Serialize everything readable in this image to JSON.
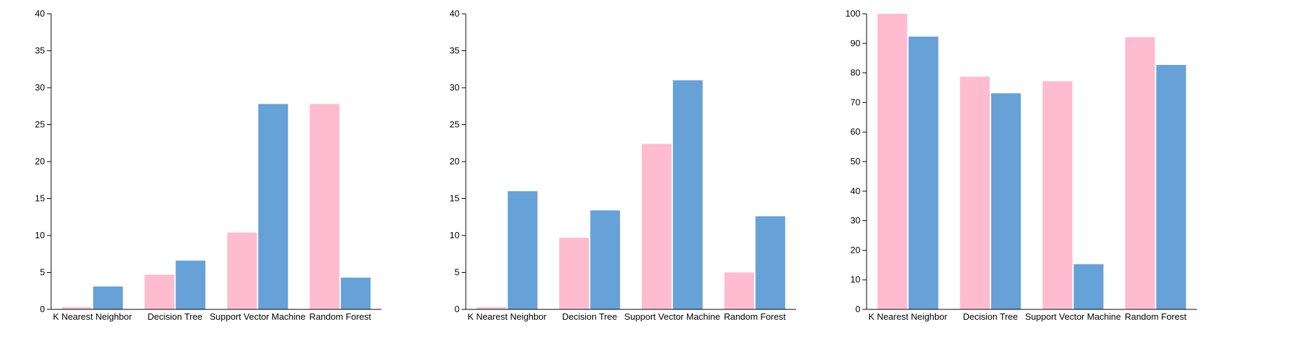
{
  "colors": {
    "pink": "#ffbbd0",
    "blue": "#66a1d8",
    "axis": "#000000"
  },
  "chart_data": [
    {
      "type": "bar",
      "categories": [
        "K Nearest Neighbor",
        "Decision Tree",
        "Support Vector Machine",
        "Random Forest"
      ],
      "series": [
        {
          "color": "#ffbbd0",
          "values": [
            0.3,
            4.7,
            10.4,
            27.8
          ]
        },
        {
          "color": "#66a1d8",
          "values": [
            3.1,
            6.6,
            27.8,
            4.3
          ]
        }
      ],
      "ylim": [
        0,
        40
      ],
      "yticks": [
        0,
        5,
        10,
        15,
        20,
        25,
        30,
        35,
        40
      ],
      "title": "",
      "xlabel": "",
      "ylabel": ""
    },
    {
      "type": "bar",
      "categories": [
        "K Nearest Neighbor",
        "Decision Tree",
        "Support Vector Machine",
        "Random Forest"
      ],
      "series": [
        {
          "color": "#ffbbd0",
          "values": [
            0.3,
            9.7,
            22.4,
            5.0
          ]
        },
        {
          "color": "#66a1d8",
          "values": [
            16.0,
            13.4,
            31.0,
            12.6
          ]
        }
      ],
      "ylim": [
        0,
        40
      ],
      "yticks": [
        0,
        5,
        10,
        15,
        20,
        25,
        30,
        35,
        40
      ],
      "title": "",
      "xlabel": "",
      "ylabel": ""
    },
    {
      "type": "bar",
      "categories": [
        "K Nearest Neighbor",
        "Decision Tree",
        "Support Vector Machine",
        "Random Forest"
      ],
      "series": [
        {
          "color": "#ffbbd0",
          "values": [
            100,
            78.7,
            77.2,
            92.1
          ]
        },
        {
          "color": "#66a1d8",
          "values": [
            92.3,
            73.1,
            15.3,
            82.7
          ]
        }
      ],
      "ylim": [
        0,
        100
      ],
      "yticks": [
        0,
        10,
        20,
        30,
        40,
        50,
        60,
        70,
        80,
        90,
        100
      ],
      "title": "",
      "xlabel": "",
      "ylabel": ""
    }
  ]
}
